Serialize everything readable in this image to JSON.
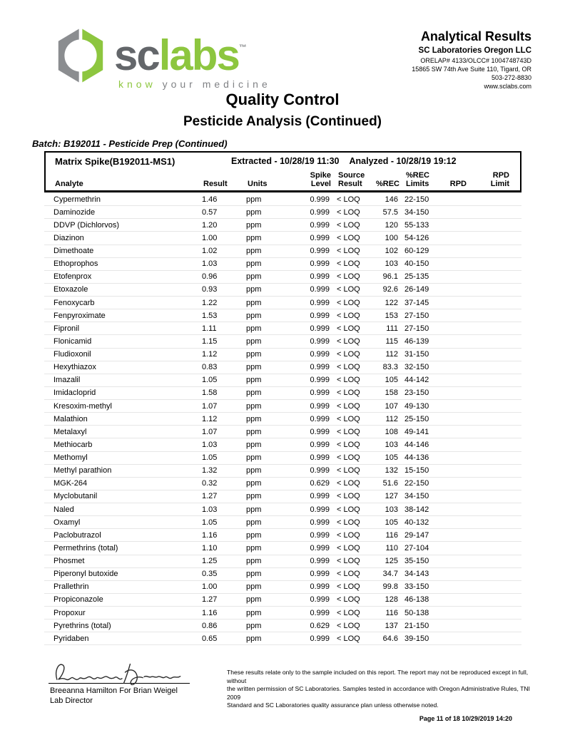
{
  "colors": {
    "brand_green": "#8dc63f",
    "brand_gray": "#63666a"
  },
  "logo": {
    "word_sc": "sc",
    "word_labs": "labs",
    "tm": "™",
    "tagline_know": "know",
    "tagline_rest": " your medicine"
  },
  "header_right": {
    "title": "Analytical Results",
    "company": "SC Laboratories Oregon LLC",
    "lines": [
      "ORELAP# 4133/OLCC# 1004748743D",
      "15865 SW 74th Ave Suite 110, Tigard, OR",
      "503-272-8830",
      "www.sclabs.com"
    ]
  },
  "titles": {
    "main": "Quality Control",
    "sub": "Pesticide Analysis (Continued)"
  },
  "batch_line": "Batch:  B192011 - Pesticide Prep (Continued)",
  "qc_table": {
    "sample": "Matrix Spike(B192011-MS1)",
    "extracted": "Extracted - 10/28/19 11:30",
    "analyzed": "Analyzed - 10/28/19 19:12",
    "columns": [
      {
        "key": "analyte",
        "top": "",
        "bottom": "Analyte"
      },
      {
        "key": "result",
        "top": "",
        "bottom": "Result"
      },
      {
        "key": "units",
        "top": "",
        "bottom": "Units"
      },
      {
        "key": "spike_level",
        "top": "Spike",
        "bottom": "Level"
      },
      {
        "key": "source_result",
        "top": "Source",
        "bottom": "Result"
      },
      {
        "key": "rec",
        "top": "",
        "bottom": "%REC"
      },
      {
        "key": "rec_limits",
        "top": "%REC",
        "bottom": "Limits"
      },
      {
        "key": "rpd",
        "top": "",
        "bottom": "RPD"
      },
      {
        "key": "rpd_limit",
        "top": "RPD",
        "bottom": "Limit"
      }
    ],
    "row_keys": [
      "analyte",
      "result",
      "units",
      "spike_level",
      "source_result",
      "rec",
      "rec_limits",
      "rpd",
      "rpd_limit"
    ],
    "rows": [
      [
        "Cypermethrin",
        "1.46",
        "ppm",
        "0.999",
        "< LOQ",
        "146",
        "22-150",
        "",
        ""
      ],
      [
        "Daminozide",
        "0.57",
        "ppm",
        "0.999",
        "< LOQ",
        "57.5",
        "34-150",
        "",
        ""
      ],
      [
        "DDVP (Dichlorvos)",
        "1.20",
        "ppm",
        "0.999",
        "< LOQ",
        "120",
        "55-133",
        "",
        ""
      ],
      [
        "Diazinon",
        "1.00",
        "ppm",
        "0.999",
        "< LOQ",
        "100",
        "54-126",
        "",
        ""
      ],
      [
        "Dimethoate",
        "1.02",
        "ppm",
        "0.999",
        "< LOQ",
        "102",
        "60-129",
        "",
        ""
      ],
      [
        "Ethoprophos",
        "1.03",
        "ppm",
        "0.999",
        "< LOQ",
        "103",
        "40-150",
        "",
        ""
      ],
      [
        "Etofenprox",
        "0.96",
        "ppm",
        "0.999",
        "< LOQ",
        "96.1",
        "25-135",
        "",
        ""
      ],
      [
        "Etoxazole",
        "0.93",
        "ppm",
        "0.999",
        "< LOQ",
        "92.6",
        "26-149",
        "",
        ""
      ],
      [
        "Fenoxycarb",
        "1.22",
        "ppm",
        "0.999",
        "< LOQ",
        "122",
        "37-145",
        "",
        ""
      ],
      [
        "Fenpyroximate",
        "1.53",
        "ppm",
        "0.999",
        "< LOQ",
        "153",
        "27-150",
        "",
        ""
      ],
      [
        "Fipronil",
        "1.11",
        "ppm",
        "0.999",
        "< LOQ",
        "111",
        "27-150",
        "",
        ""
      ],
      [
        "Flonicamid",
        "1.15",
        "ppm",
        "0.999",
        "< LOQ",
        "115",
        "46-139",
        "",
        ""
      ],
      [
        "Fludioxonil",
        "1.12",
        "ppm",
        "0.999",
        "< LOQ",
        "112",
        "31-150",
        "",
        ""
      ],
      [
        "Hexythiazox",
        "0.83",
        "ppm",
        "0.999",
        "< LOQ",
        "83.3",
        "32-150",
        "",
        ""
      ],
      [
        "Imazalil",
        "1.05",
        "ppm",
        "0.999",
        "< LOQ",
        "105",
        "44-142",
        "",
        ""
      ],
      [
        "Imidacloprid",
        "1.58",
        "ppm",
        "0.999",
        "< LOQ",
        "158",
        "23-150",
        "",
        ""
      ],
      [
        "Kresoxim-methyl",
        "1.07",
        "ppm",
        "0.999",
        "< LOQ",
        "107",
        "49-130",
        "",
        ""
      ],
      [
        "Malathion",
        "1.12",
        "ppm",
        "0.999",
        "< LOQ",
        "112",
        "25-150",
        "",
        ""
      ],
      [
        "Metalaxyl",
        "1.07",
        "ppm",
        "0.999",
        "< LOQ",
        "108",
        "49-141",
        "",
        ""
      ],
      [
        "Methiocarb",
        "1.03",
        "ppm",
        "0.999",
        "< LOQ",
        "103",
        "44-146",
        "",
        ""
      ],
      [
        "Methomyl",
        "1.05",
        "ppm",
        "0.999",
        "< LOQ",
        "105",
        "44-136",
        "",
        ""
      ],
      [
        "Methyl parathion",
        "1.32",
        "ppm",
        "0.999",
        "< LOQ",
        "132",
        "15-150",
        "",
        ""
      ],
      [
        "MGK-264",
        "0.32",
        "ppm",
        "0.629",
        "< LOQ",
        "51.6",
        "22-150",
        "",
        ""
      ],
      [
        "Myclobutanil",
        "1.27",
        "ppm",
        "0.999",
        "< LOQ",
        "127",
        "34-150",
        "",
        ""
      ],
      [
        "Naled",
        "1.03",
        "ppm",
        "0.999",
        "< LOQ",
        "103",
        "38-142",
        "",
        ""
      ],
      [
        "Oxamyl",
        "1.05",
        "ppm",
        "0.999",
        "< LOQ",
        "105",
        "40-132",
        "",
        ""
      ],
      [
        "Paclobutrazol",
        "1.16",
        "ppm",
        "0.999",
        "< LOQ",
        "116",
        "29-147",
        "",
        ""
      ],
      [
        "Permethrins (total)",
        "1.10",
        "ppm",
        "0.999",
        "< LOQ",
        "110",
        "27-104",
        "",
        ""
      ],
      [
        "Phosmet",
        "1.25",
        "ppm",
        "0.999",
        "< LOQ",
        "125",
        "35-150",
        "",
        ""
      ],
      [
        "Piperonyl butoxide",
        "0.35",
        "ppm",
        "0.999",
        "< LOQ",
        "34.7",
        "34-143",
        "",
        ""
      ],
      [
        "Prallethrin",
        "1.00",
        "ppm",
        "0.999",
        "< LOQ",
        "99.8",
        "33-150",
        "",
        ""
      ],
      [
        "Propiconazole",
        "1.27",
        "ppm",
        "0.999",
        "< LOQ",
        "128",
        "46-138",
        "",
        ""
      ],
      [
        "Propoxur",
        "1.16",
        "ppm",
        "0.999",
        "< LOQ",
        "116",
        "50-138",
        "",
        ""
      ],
      [
        "Pyrethrins (total)",
        "0.86",
        "ppm",
        "0.629",
        "< LOQ",
        "137",
        "21-150",
        "",
        ""
      ],
      [
        "Pyridaben",
        "0.65",
        "ppm",
        "0.999",
        "< LOQ",
        "64.6",
        "39-150",
        "",
        ""
      ]
    ]
  },
  "signature": {
    "name_line": "Breeanna Hamilton For Brian Weigel",
    "title_line": "Lab Director"
  },
  "disclaimer_lines": [
    "These results relate only to the sample included on this report. The report may not be reproduced except in full, without",
    "the written permission of SC Laboratories. Samples tested in accordance with Oregon Administrative Rules, TNI 2009",
    "Standard and SC Laboratories quality assurance plan unless otherwise noted."
  ],
  "page_footer": "Page 11 of 18  10/29/2019 14:20"
}
